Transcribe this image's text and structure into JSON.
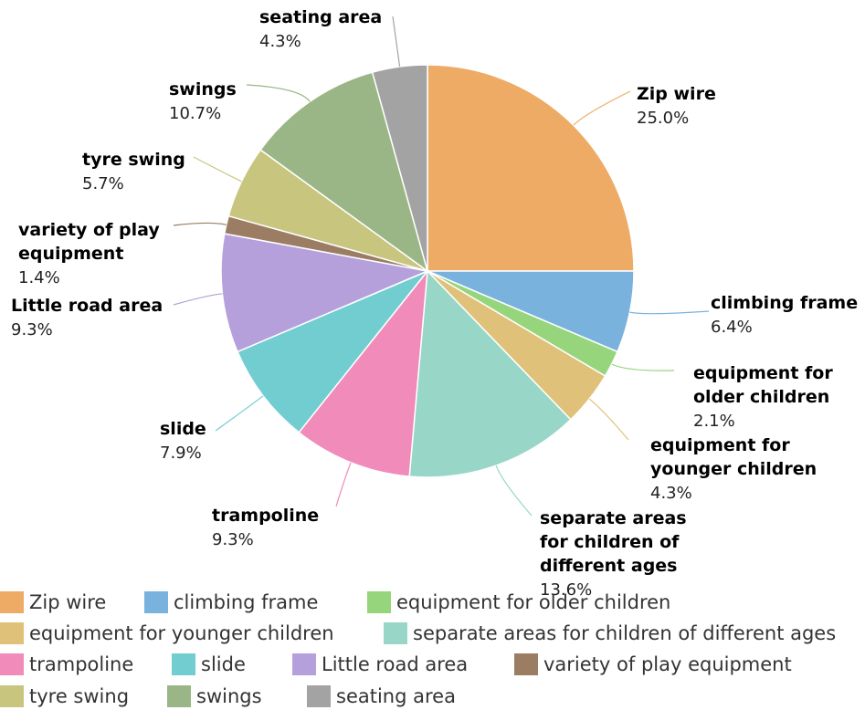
{
  "chart_data": {
    "type": "pie",
    "slices": [
      {
        "label": "Zip wire",
        "value": 25.0,
        "display": "25.0%",
        "color": "#EDAB66"
      },
      {
        "label": "climbing frame",
        "value": 6.4,
        "display": "6.4%",
        "color": "#7AB2DE"
      },
      {
        "label": "equipment for older children",
        "value": 2.1,
        "display": "2.1%",
        "color": "#97D57D"
      },
      {
        "label": "equipment for younger children",
        "value": 4.3,
        "display": "4.3%",
        "color": "#E0C179"
      },
      {
        "label": "separate areas for children of different ages",
        "value": 13.6,
        "display": "13.6%",
        "color": "#98D6C8"
      },
      {
        "label": "trampoline",
        "value": 9.3,
        "display": "9.3%",
        "color": "#F08BBA"
      },
      {
        "label": "slide",
        "value": 7.9,
        "display": "7.9%",
        "color": "#72CDD1"
      },
      {
        "label": "Little road area",
        "value": 9.3,
        "display": "9.3%",
        "color": "#B5A0DC"
      },
      {
        "label": "variety of play equipment",
        "value": 1.4,
        "display": "1.4%",
        "color": "#9A7D63"
      },
      {
        "label": "tyre swing",
        "value": 5.7,
        "display": "5.7%",
        "color": "#C8C57F"
      },
      {
        "label": "swings",
        "value": 10.7,
        "display": "10.7%",
        "color": "#9AB686"
      },
      {
        "label": "seating area",
        "value": 4.3,
        "display": "4.3%",
        "color": "#A3A3A3"
      }
    ],
    "legend_position": "bottom"
  }
}
